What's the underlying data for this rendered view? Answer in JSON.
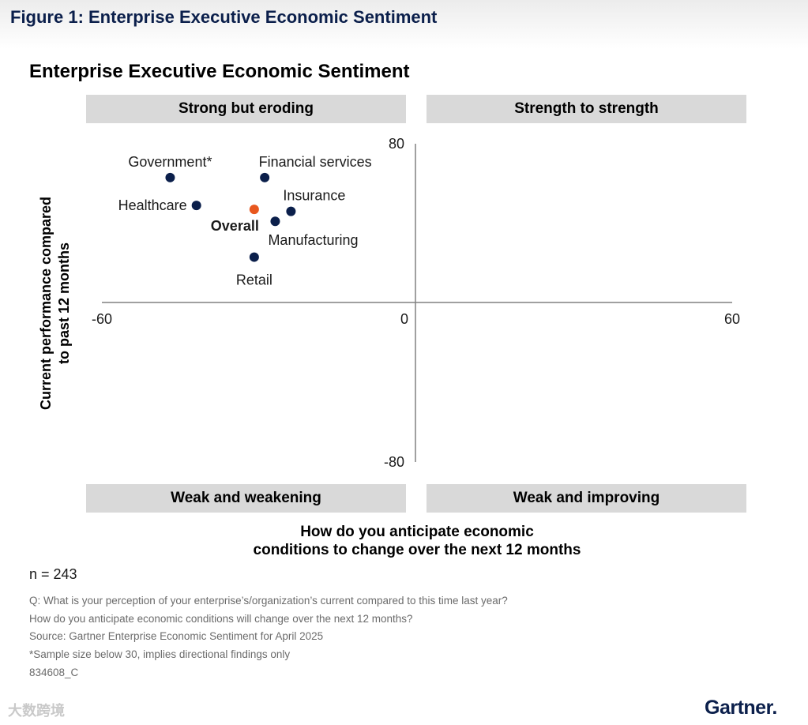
{
  "figure_title": "Figure 1: Enterprise Executive Economic Sentiment",
  "quadrants": {
    "top_left": "Strong but eroding",
    "top_right": "Strength to strength",
    "bottom_left": "Weak and weakening",
    "bottom_right": "Weak and improving"
  },
  "colors": {
    "industry_point": "#0b1f4b",
    "overall_point": "#e8571e",
    "axis": "#808080",
    "quadrant_box": "#d9d9d9"
  },
  "chart_data": {
    "type": "scatter",
    "title": "Enterprise Executive Economic Sentiment",
    "xlabel_lines": [
      "How do you anticipate economic",
      "conditions to change over the next 12 months"
    ],
    "ylabel_lines": [
      "Current performance compared",
      "to past 12 months"
    ],
    "xlim": [
      -60,
      60
    ],
    "ylim": [
      -80,
      80
    ],
    "x_tick_labels": [
      "-60",
      "0",
      "60"
    ],
    "y_tick_labels": [
      "80",
      "-80"
    ],
    "grid": false,
    "legend": "none",
    "points": [
      {
        "label": "Government*",
        "x": -47,
        "y": 63,
        "bold": false
      },
      {
        "label": "Financial services",
        "x": -29,
        "y": 63,
        "bold": false
      },
      {
        "label": "Healthcare",
        "x": -42,
        "y": 49,
        "bold": false
      },
      {
        "label": "Insurance",
        "x": -24,
        "y": 46,
        "bold": false
      },
      {
        "label": "Overall",
        "x": -31,
        "y": 47,
        "bold": true
      },
      {
        "label": "Manufacturing",
        "x": -27,
        "y": 41,
        "bold": false
      },
      {
        "label": "Retail",
        "x": -31,
        "y": 23,
        "bold": false
      }
    ]
  },
  "sample": "n = 243",
  "footnotes": [
    "Q: What is your perception of your enterprise’s/organization’s current compared to this time last year?",
    "How do you anticipate economic conditions will change over the next 12 months?",
    "Source: Gartner Enterprise Economic Sentiment for April 2025",
    "*Sample size below 30, implies directional findings only",
    "834608_C"
  ],
  "watermark": "大数跨境",
  "brand": "Gartner."
}
